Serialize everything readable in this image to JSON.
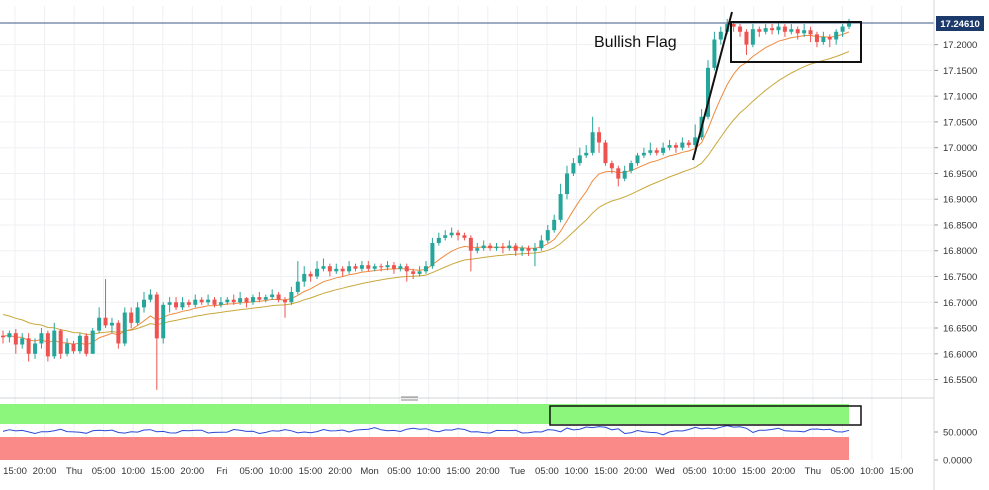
{
  "chart_data": {
    "type": "candlestick",
    "annotation": "Bullish Flag",
    "price_axis": {
      "min": 16.52,
      "max": 17.275,
      "ticks": [
        "17.2000",
        "17.1500",
        "17.1000",
        "17.0500",
        "17.0000",
        "16.9500",
        "16.9000",
        "16.8500",
        "16.8000",
        "16.7500",
        "16.7000",
        "16.6500",
        "16.6000",
        "16.5500"
      ]
    },
    "last_price": "17.24610",
    "time_axis": {
      "labels": [
        "15:00",
        "20:00",
        "Thu",
        "05:00",
        "10:00",
        "15:00",
        "20:00",
        "Fri",
        "05:00",
        "10:00",
        "15:00",
        "20:00",
        "Mon",
        "05:00",
        "10:00",
        "15:00",
        "20:00",
        "Tue",
        "05:00",
        "10:00",
        "15:00",
        "20:00",
        "Wed",
        "05:00",
        "10:00",
        "15:00",
        "20:00",
        "Thu",
        "05:00",
        "10:00",
        "15:00"
      ]
    },
    "indicator_panel": {
      "ticks": [
        "50.0000",
        "0.0000"
      ],
      "overbought_color": "#8cf57c",
      "oversold_color": "#fa8a88",
      "line_color": "#2b4bd6"
    },
    "colors": {
      "up": "#26a69a",
      "down": "#ef5350",
      "ma_fast": "#f08a3e",
      "ma_slow": "#c9a83b"
    },
    "candles": [
      [
        16.635,
        16.632,
        16.645,
        16.62
      ],
      [
        16.632,
        16.64,
        16.645,
        16.622
      ],
      [
        16.64,
        16.618,
        16.648,
        16.6
      ],
      [
        16.618,
        16.63,
        16.64,
        16.61
      ],
      [
        16.63,
        16.6,
        16.64,
        16.585
      ],
      [
        16.6,
        16.62,
        16.63,
        16.59
      ],
      [
        16.62,
        16.64,
        16.65,
        16.61
      ],
      [
        16.64,
        16.595,
        16.645,
        16.585
      ],
      [
        16.595,
        16.645,
        16.66,
        16.59
      ],
      [
        16.645,
        16.6,
        16.648,
        16.59
      ],
      [
        16.6,
        16.62,
        16.63,
        16.595
      ],
      [
        16.62,
        16.605,
        16.625,
        16.6
      ],
      [
        16.605,
        16.635,
        16.64,
        16.6
      ],
      [
        16.635,
        16.6,
        16.64,
        16.595
      ],
      [
        16.6,
        16.645,
        16.65,
        16.6
      ],
      [
        16.645,
        16.67,
        16.69,
        16.64
      ],
      [
        16.67,
        16.655,
        16.745,
        16.65
      ],
      [
        16.655,
        16.66,
        16.67,
        16.64
      ],
      [
        16.66,
        16.62,
        16.665,
        16.61
      ],
      [
        16.62,
        16.68,
        16.69,
        16.615
      ],
      [
        16.68,
        16.66,
        16.69,
        16.65
      ],
      [
        16.66,
        16.69,
        16.7,
        16.655
      ],
      [
        16.69,
        16.705,
        16.72,
        16.68
      ],
      [
        16.705,
        16.715,
        16.725,
        16.7
      ],
      [
        16.715,
        16.63,
        16.72,
        16.53
      ],
      [
        16.63,
        16.695,
        16.7,
        16.62
      ],
      [
        16.695,
        16.7,
        16.71,
        16.68
      ],
      [
        16.7,
        16.69,
        16.71,
        16.685
      ],
      [
        16.69,
        16.7,
        16.71,
        16.685
      ],
      [
        16.7,
        16.695,
        16.705,
        16.69
      ],
      [
        16.695,
        16.705,
        16.715,
        16.69
      ],
      [
        16.705,
        16.7,
        16.71,
        16.695
      ],
      [
        16.7,
        16.705,
        16.715,
        16.695
      ],
      [
        16.705,
        16.695,
        16.71,
        16.69
      ],
      [
        16.695,
        16.7,
        16.71,
        16.69
      ],
      [
        16.7,
        16.705,
        16.71,
        16.695
      ],
      [
        16.705,
        16.7,
        16.715,
        16.695
      ],
      [
        16.7,
        16.708,
        16.72,
        16.695
      ],
      [
        16.708,
        16.7,
        16.71,
        16.69
      ],
      [
        16.7,
        16.71,
        16.715,
        16.695
      ],
      [
        16.71,
        16.705,
        16.72,
        16.7
      ],
      [
        16.705,
        16.71,
        16.715,
        16.7
      ],
      [
        16.71,
        16.715,
        16.725,
        16.705
      ],
      [
        16.715,
        16.705,
        16.72,
        16.7
      ],
      [
        16.705,
        16.7,
        16.71,
        16.67
      ],
      [
        16.7,
        16.72,
        16.73,
        16.695
      ],
      [
        16.72,
        16.74,
        16.78,
        16.715
      ],
      [
        16.74,
        16.755,
        16.77,
        16.73
      ],
      [
        16.755,
        16.75,
        16.76,
        16.74
      ],
      [
        16.75,
        16.765,
        16.78,
        16.745
      ],
      [
        16.765,
        16.77,
        16.785,
        16.76
      ],
      [
        16.77,
        16.76,
        16.775,
        16.75
      ],
      [
        16.76,
        16.765,
        16.775,
        16.755
      ],
      [
        16.765,
        16.76,
        16.77,
        16.75
      ],
      [
        16.76,
        16.77,
        16.78,
        16.755
      ],
      [
        16.77,
        16.765,
        16.775,
        16.76
      ],
      [
        16.765,
        16.772,
        16.78,
        16.76
      ],
      [
        16.772,
        16.765,
        16.78,
        16.76
      ],
      [
        16.765,
        16.77,
        16.775,
        16.76
      ],
      [
        16.77,
        16.768,
        16.775,
        16.76
      ],
      [
        16.768,
        16.772,
        16.78,
        16.762
      ],
      [
        16.772,
        16.765,
        16.778,
        16.755
      ],
      [
        16.765,
        16.77,
        16.775,
        16.76
      ],
      [
        16.77,
        16.76,
        16.775,
        16.74
      ],
      [
        16.76,
        16.755,
        16.765,
        16.745
      ],
      [
        16.755,
        16.76,
        16.77,
        16.75
      ],
      [
        16.76,
        16.77,
        16.78,
        16.755
      ],
      [
        16.77,
        16.815,
        16.825,
        16.765
      ],
      [
        16.815,
        16.825,
        16.835,
        16.81
      ],
      [
        16.825,
        16.83,
        16.84,
        16.82
      ],
      [
        16.83,
        16.835,
        16.845,
        16.825
      ],
      [
        16.835,
        16.83,
        16.84,
        16.82
      ],
      [
        16.83,
        16.825,
        16.835,
        16.82
      ],
      [
        16.825,
        16.8,
        16.83,
        16.76
      ],
      [
        16.8,
        16.805,
        16.815,
        16.795
      ],
      [
        16.805,
        16.81,
        16.82,
        16.8
      ],
      [
        16.81,
        16.805,
        16.815,
        16.8
      ],
      [
        16.805,
        16.808,
        16.815,
        16.8
      ],
      [
        16.808,
        16.805,
        16.815,
        16.795
      ],
      [
        16.805,
        16.81,
        16.82,
        16.8
      ],
      [
        16.81,
        16.8,
        16.815,
        16.79
      ],
      [
        16.8,
        16.805,
        16.81,
        16.79
      ],
      [
        16.805,
        16.8,
        16.81,
        16.79
      ],
      [
        16.8,
        16.805,
        16.815,
        16.77
      ],
      [
        16.805,
        16.82,
        16.83,
        16.8
      ],
      [
        16.82,
        16.84,
        16.85,
        16.815
      ],
      [
        16.84,
        16.86,
        16.87,
        16.835
      ],
      [
        16.86,
        16.91,
        16.93,
        16.855
      ],
      [
        16.91,
        16.95,
        16.965,
        16.9
      ],
      [
        16.95,
        16.97,
        16.98,
        16.945
      ],
      [
        16.97,
        16.985,
        17.0,
        16.965
      ],
      [
        16.985,
        16.99,
        17.005,
        16.98
      ],
      [
        16.99,
        17.03,
        17.06,
        16.985
      ],
      [
        17.03,
        17.01,
        17.04,
        16.99
      ],
      [
        17.01,
        16.97,
        17.015,
        16.965
      ],
      [
        16.97,
        16.96,
        16.975,
        16.95
      ],
      [
        16.96,
        16.94,
        16.965,
        16.925
      ],
      [
        16.94,
        16.955,
        16.965,
        16.935
      ],
      [
        16.955,
        16.97,
        16.975,
        16.95
      ],
      [
        16.97,
        16.985,
        16.99,
        16.965
      ],
      [
        16.985,
        16.99,
        17.0,
        16.98
      ],
      [
        16.99,
        16.995,
        17.01,
        16.985
      ],
      [
        16.995,
        16.99,
        17.0,
        16.985
      ],
      [
        16.99,
        17.0,
        17.01,
        16.985
      ],
      [
        17.0,
        17.005,
        17.015,
        16.995
      ],
      [
        17.005,
        17.0,
        17.01,
        16.99
      ],
      [
        17.0,
        17.01,
        17.02,
        16.995
      ],
      [
        17.01,
        17.005,
        17.015,
        17.0
      ],
      [
        17.005,
        17.02,
        17.045,
        17.0
      ],
      [
        17.02,
        17.06,
        17.075,
        17.015
      ],
      [
        17.06,
        17.155,
        17.17,
        17.055
      ],
      [
        17.155,
        17.21,
        17.225,
        17.15
      ],
      [
        17.21,
        17.225,
        17.235,
        17.2
      ],
      [
        17.225,
        17.24,
        17.25,
        17.22
      ],
      [
        17.24,
        17.235,
        17.245,
        17.225
      ],
      [
        17.235,
        17.225,
        17.24,
        17.215
      ],
      [
        17.225,
        17.2,
        17.23,
        17.18
      ],
      [
        17.2,
        17.23,
        17.24,
        17.195
      ],
      [
        17.23,
        17.225,
        17.235,
        17.215
      ],
      [
        17.225,
        17.232,
        17.24,
        17.22
      ],
      [
        17.232,
        17.228,
        17.24,
        17.22
      ],
      [
        17.228,
        17.235,
        17.245,
        17.22
      ],
      [
        17.235,
        17.225,
        17.24,
        17.215
      ],
      [
        17.225,
        17.23,
        17.24,
        17.22
      ],
      [
        17.23,
        17.222,
        17.235,
        17.21
      ],
      [
        17.222,
        17.228,
        17.24,
        17.215
      ],
      [
        17.228,
        17.22,
        17.235,
        17.205
      ],
      [
        17.22,
        17.205,
        17.225,
        17.195
      ],
      [
        17.205,
        17.215,
        17.225,
        17.2
      ],
      [
        17.215,
        17.21,
        17.22,
        17.195
      ],
      [
        17.21,
        17.225,
        17.23,
        17.2
      ],
      [
        17.225,
        17.235,
        17.24,
        17.215
      ],
      [
        17.235,
        17.246,
        17.25,
        17.23
      ]
    ]
  }
}
